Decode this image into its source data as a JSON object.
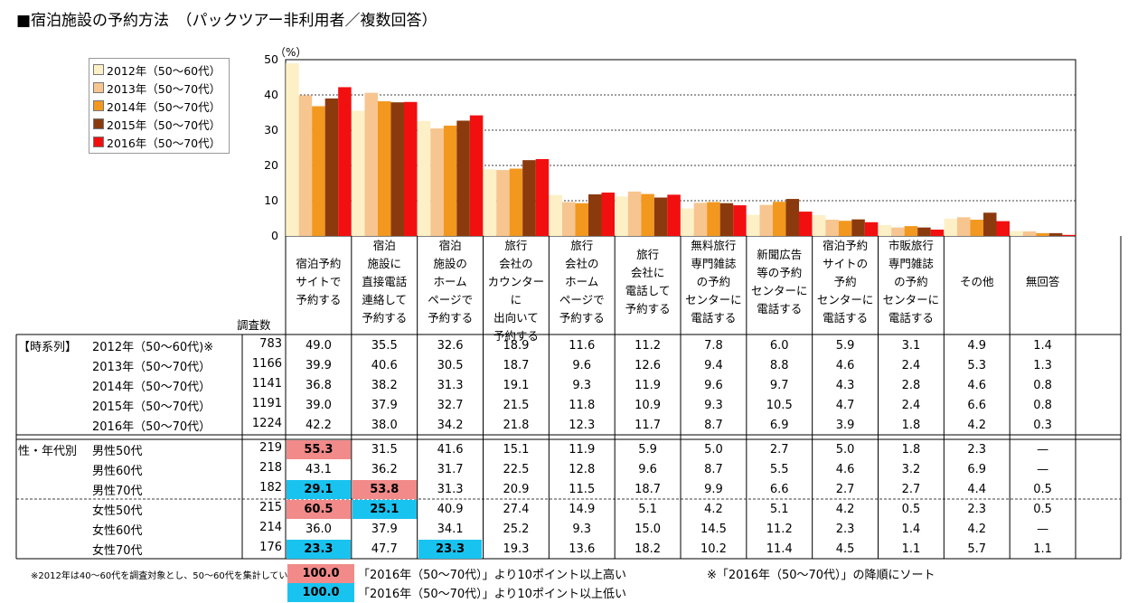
{
  "title": "■宿泊施設の予約方法　（パックツアー非利用者／複数回答）",
  "colors": {
    "series": [
      "#fdf0c6",
      "#f7c590",
      "#f2981f",
      "#8b3a0e",
      "#f20f10"
    ],
    "high": "#f28a8a",
    "low": "#19c3f0"
  },
  "chart_data": {
    "type": "bar",
    "unit": "（%）",
    "ylim": [
      0,
      50
    ],
    "yticks": [
      "0",
      "10",
      "20",
      "30",
      "40",
      "50"
    ],
    "grid": true,
    "legend_position": "top-left",
    "categories": [
      [
        "宿泊予約",
        "サイトで",
        "予約する"
      ],
      [
        "宿泊",
        "施設に",
        "直接電話",
        "連絡して",
        "予約する"
      ],
      [
        "宿泊",
        "施設の",
        "ホーム",
        "ページで",
        "予約する"
      ],
      [
        "旅行",
        "会社の",
        "カウンターに",
        "出向いて",
        "予約する"
      ],
      [
        "旅行",
        "会社の",
        "ホーム",
        "ページで",
        "予約する"
      ],
      [
        "旅行",
        "会社に",
        "電話して",
        "予約する"
      ],
      [
        "無料旅行",
        "専門雑誌",
        "の予約",
        "センターに",
        "電話する"
      ],
      [
        "新聞広告",
        "等の予約",
        "センターに",
        "電話する"
      ],
      [
        "宿泊予約",
        "サイトの",
        "予約",
        "センターに",
        "電話する"
      ],
      [
        "市販旅行",
        "専門雑誌",
        "の予約",
        "センターに",
        "電話する"
      ],
      [
        "その他"
      ],
      [
        "無回答"
      ]
    ],
    "series": [
      {
        "name": "2012年（50～60代）",
        "values": [
          49.0,
          35.5,
          32.6,
          18.9,
          11.6,
          11.2,
          7.8,
          6.0,
          5.9,
          3.1,
          4.9,
          1.4
        ]
      },
      {
        "name": "2013年（50～70代）",
        "values": [
          39.9,
          40.6,
          30.5,
          18.7,
          9.6,
          12.6,
          9.4,
          8.8,
          4.6,
          2.4,
          5.3,
          1.3
        ]
      },
      {
        "name": "2014年（50～70代）",
        "values": [
          36.8,
          38.2,
          31.3,
          19.1,
          9.3,
          11.9,
          9.6,
          9.7,
          4.3,
          2.8,
          4.6,
          0.8
        ]
      },
      {
        "name": "2015年（50～70代）",
        "values": [
          39.0,
          37.9,
          32.7,
          21.5,
          11.8,
          10.9,
          9.3,
          10.5,
          4.7,
          2.4,
          6.6,
          0.8
        ]
      },
      {
        "name": "2016年（50～70代）",
        "values": [
          42.2,
          38.0,
          34.2,
          21.8,
          12.3,
          11.7,
          8.7,
          6.9,
          3.9,
          1.8,
          4.2,
          0.3
        ]
      }
    ]
  },
  "table": {
    "n_header": "調査数",
    "groups": [
      {
        "label": "【時系列】",
        "rows": [
          {
            "label": "2012年（50～60代)※",
            "n": "783",
            "values": [
              "49.0",
              "35.5",
              "32.6",
              "18.9",
              "11.6",
              "11.2",
              "7.8",
              "6.0",
              "5.9",
              "3.1",
              "4.9",
              "1.4"
            ],
            "marks": [
              "",
              "",
              "",
              "",
              "",
              "",
              "",
              "",
              "",
              "",
              "",
              ""
            ]
          },
          {
            "label": "2013年（50～70代）",
            "n": "1166",
            "values": [
              "39.9",
              "40.6",
              "30.5",
              "18.7",
              "9.6",
              "12.6",
              "9.4",
              "8.8",
              "4.6",
              "2.4",
              "5.3",
              "1.3"
            ],
            "marks": [
              "",
              "",
              "",
              "",
              "",
              "",
              "",
              "",
              "",
              "",
              "",
              ""
            ]
          },
          {
            "label": "2014年（50～70代）",
            "n": "1141",
            "values": [
              "36.8",
              "38.2",
              "31.3",
              "19.1",
              "9.3",
              "11.9",
              "9.6",
              "9.7",
              "4.3",
              "2.8",
              "4.6",
              "0.8"
            ],
            "marks": [
              "",
              "",
              "",
              "",
              "",
              "",
              "",
              "",
              "",
              "",
              "",
              ""
            ]
          },
          {
            "label": "2015年（50～70代）",
            "n": "1191",
            "values": [
              "39.0",
              "37.9",
              "32.7",
              "21.5",
              "11.8",
              "10.9",
              "9.3",
              "10.5",
              "4.7",
              "2.4",
              "6.6",
              "0.8"
            ],
            "marks": [
              "",
              "",
              "",
              "",
              "",
              "",
              "",
              "",
              "",
              "",
              "",
              ""
            ]
          },
          {
            "label": "2016年（50～70代）",
            "n": "1224",
            "values": [
              "42.2",
              "38.0",
              "34.2",
              "21.8",
              "12.3",
              "11.7",
              "8.7",
              "6.9",
              "3.9",
              "1.8",
              "4.2",
              "0.3"
            ],
            "marks": [
              "",
              "",
              "",
              "",
              "",
              "",
              "",
              "",
              "",
              "",
              "",
              ""
            ]
          }
        ]
      },
      {
        "label": "性・年代別",
        "rows": [
          {
            "label": "男性50代",
            "n": "219",
            "values": [
              "55.3",
              "31.5",
              "41.6",
              "15.1",
              "11.9",
              "5.9",
              "5.0",
              "2.7",
              "5.0",
              "1.8",
              "2.3",
              "—"
            ],
            "marks": [
              "hi",
              "",
              "",
              "",
              "",
              "",
              "",
              "",
              "",
              "",
              "",
              ""
            ]
          },
          {
            "label": "男性60代",
            "n": "218",
            "values": [
              "43.1",
              "36.2",
              "31.7",
              "22.5",
              "12.8",
              "9.6",
              "8.7",
              "5.5",
              "4.6",
              "3.2",
              "6.9",
              "—"
            ],
            "marks": [
              "",
              "",
              "",
              "",
              "",
              "",
              "",
              "",
              "",
              "",
              "",
              ""
            ]
          },
          {
            "label": "男性70代",
            "n": "182",
            "values": [
              "29.1",
              "53.8",
              "31.3",
              "20.9",
              "11.5",
              "18.7",
              "9.9",
              "6.6",
              "2.7",
              "2.7",
              "4.4",
              "0.5"
            ],
            "marks": [
              "lo",
              "hi",
              "",
              "",
              "",
              "",
              "",
              "",
              "",
              "",
              "",
              ""
            ]
          },
          {
            "label": "女性50代",
            "n": "215",
            "values": [
              "60.5",
              "25.1",
              "40.9",
              "27.4",
              "14.9",
              "5.1",
              "4.2",
              "5.1",
              "4.2",
              "0.5",
              "2.3",
              "0.5"
            ],
            "marks": [
              "hi",
              "lo",
              "",
              "",
              "",
              "",
              "",
              "",
              "",
              "",
              "",
              ""
            ]
          },
          {
            "label": "女性60代",
            "n": "214",
            "values": [
              "36.0",
              "37.9",
              "34.1",
              "25.2",
              "9.3",
              "15.0",
              "14.5",
              "11.2",
              "2.3",
              "1.4",
              "4.2",
              "—"
            ],
            "marks": [
              "",
              "",
              "",
              "",
              "",
              "",
              "",
              "",
              "",
              "",
              "",
              ""
            ]
          },
          {
            "label": "女性70代",
            "n": "176",
            "values": [
              "23.3",
              "47.7",
              "23.3",
              "19.3",
              "13.6",
              "18.2",
              "10.2",
              "11.4",
              "4.5",
              "1.1",
              "5.7",
              "1.1"
            ],
            "marks": [
              "lo",
              "",
              "lo",
              "",
              "",
              "",
              "",
              "",
              "",
              "",
              "",
              ""
            ]
          }
        ]
      }
    ]
  },
  "footnote": "※2012年は40～60代を調査対象とし、50～60代を集計している",
  "key": {
    "high_value": "100.0",
    "high_text": "「2016年（50～70代）」より10ポイント以上高い",
    "low_value": "100.0",
    "low_text": "「2016年（50～70代）」より10ポイント以上低い",
    "sort_note": "※「2016年（50～70代）」の降順にソート"
  }
}
